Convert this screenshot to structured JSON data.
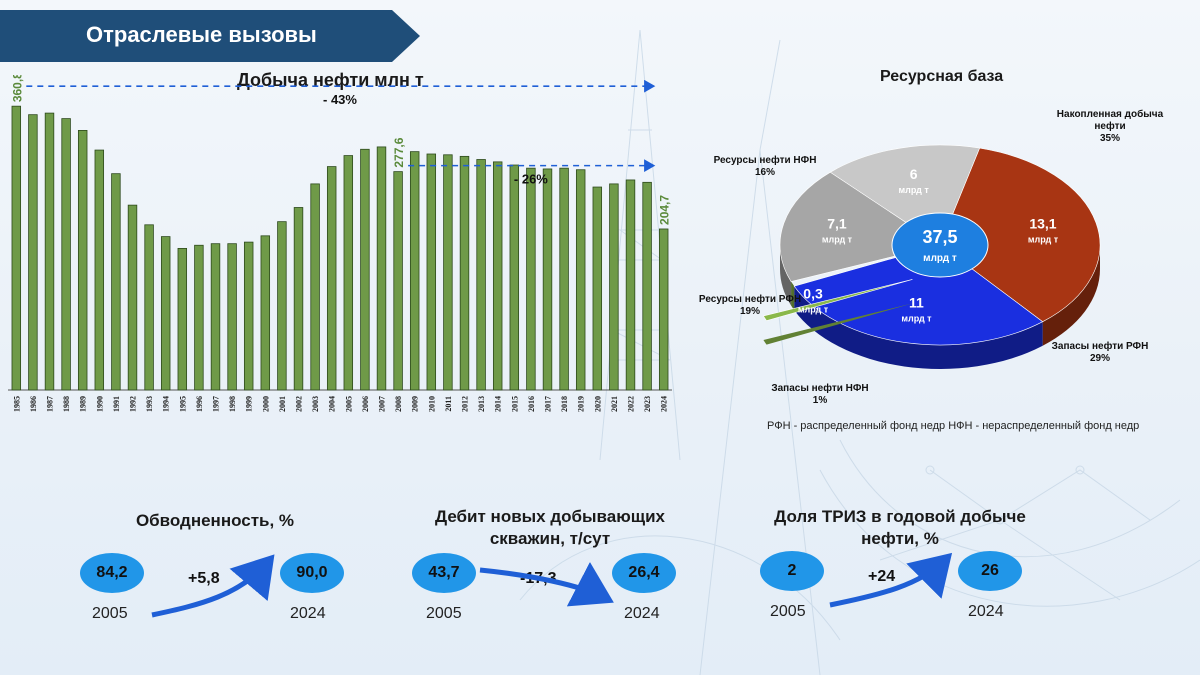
{
  "header": {
    "title": "Отраслевые вызовы"
  },
  "colors": {
    "banner": "#1f4e79",
    "bar": "#6f9a48",
    "highlight": "#5a8a3a",
    "arrow": "#1f5fd6",
    "oval": "#2196e8"
  },
  "chart_data": [
    {
      "type": "bar",
      "title": "Добыча нефти млн т",
      "categories": [
        "1985",
        "1986",
        "1987",
        "1988",
        "1989",
        "1990",
        "1991",
        "1992",
        "1993",
        "1994",
        "1995",
        "1996",
        "1997",
        "1998",
        "1999",
        "2000",
        "2001",
        "2002",
        "2003",
        "2004",
        "2005",
        "2006",
        "2007",
        "2008",
        "2009",
        "2010",
        "2011",
        "2012",
        "2013",
        "2014",
        "2015",
        "2016",
        "2017",
        "2018",
        "2019",
        "2020",
        "2021",
        "2022",
        "2023",
        "2024"
      ],
      "values": [
        360.8,
        350,
        352,
        345,
        330,
        305,
        275,
        235,
        210,
        195,
        180,
        184,
        186,
        186,
        188,
        196,
        214,
        232,
        262,
        284,
        298,
        306,
        309,
        277.6,
        303,
        300,
        299,
        297,
        293,
        290,
        286,
        282,
        281,
        282,
        280,
        258,
        262,
        267,
        264,
        204.7
      ],
      "ylim": [
        0,
        375
      ],
      "data_labels": [
        {
          "category": "1985",
          "text": "360,8"
        },
        {
          "category": "2008",
          "text": "277,6"
        },
        {
          "category": "2024",
          "text": "204,7"
        }
      ],
      "annotations": [
        {
          "from": "1985",
          "to": "2024",
          "text": "- 43%"
        },
        {
          "from": "2008",
          "to": "2024",
          "text": "- 26%"
        }
      ]
    },
    {
      "type": "pie",
      "title": "Ресурсная база",
      "center_label": {
        "value": "37,5",
        "unit": "млрд т"
      },
      "slices": [
        {
          "name": "Накопленная добыча нефти",
          "value": 13.1,
          "value_label": "13,1",
          "unit": "млрд т",
          "percent": "35%",
          "color": "#a83513"
        },
        {
          "name": "Запасы нефти РФН",
          "value": 11,
          "value_label": "11",
          "unit": "млрд т",
          "percent": "29%",
          "color": "#1a2fe0"
        },
        {
          "name": "Запасы нефти НФН",
          "value": 0.3,
          "value_label": "0,3",
          "unit": "млрд т",
          "percent": "1%",
          "color": "#8ab84a"
        },
        {
          "name": "Ресурсы нефти РФН",
          "value": 7.1,
          "value_label": "7,1",
          "unit": "млрд т",
          "percent": "19%",
          "color": "#a6a6a6"
        },
        {
          "name": "Ресурсы нефти НФН",
          "value": 6,
          "value_label": "6",
          "unit": "млрд т",
          "percent": "16%",
          "color": "#c8c8c8"
        }
      ],
      "footnote": "РФН - распределенный фонд недр  НФН - нераспределенный фонд недр"
    }
  ],
  "kpis": [
    {
      "title": "Обводненность, %",
      "from_value": "84,2",
      "to_value": "90,0",
      "delta": "+5,8",
      "from_year": "2005",
      "to_year": "2024",
      "trend": "up"
    },
    {
      "title": "Дебит новых добывающих скважин, т/сут",
      "from_value": "43,7",
      "to_value": "26,4",
      "delta": "-17,3",
      "from_year": "2005",
      "to_year": "2024",
      "trend": "down"
    },
    {
      "title": "Доля ТРИЗ в годовой добыче нефти, %",
      "from_value": "2",
      "to_value": "26",
      "delta": "+24",
      "from_year": "2005",
      "to_year": "2024",
      "trend": "up"
    }
  ]
}
